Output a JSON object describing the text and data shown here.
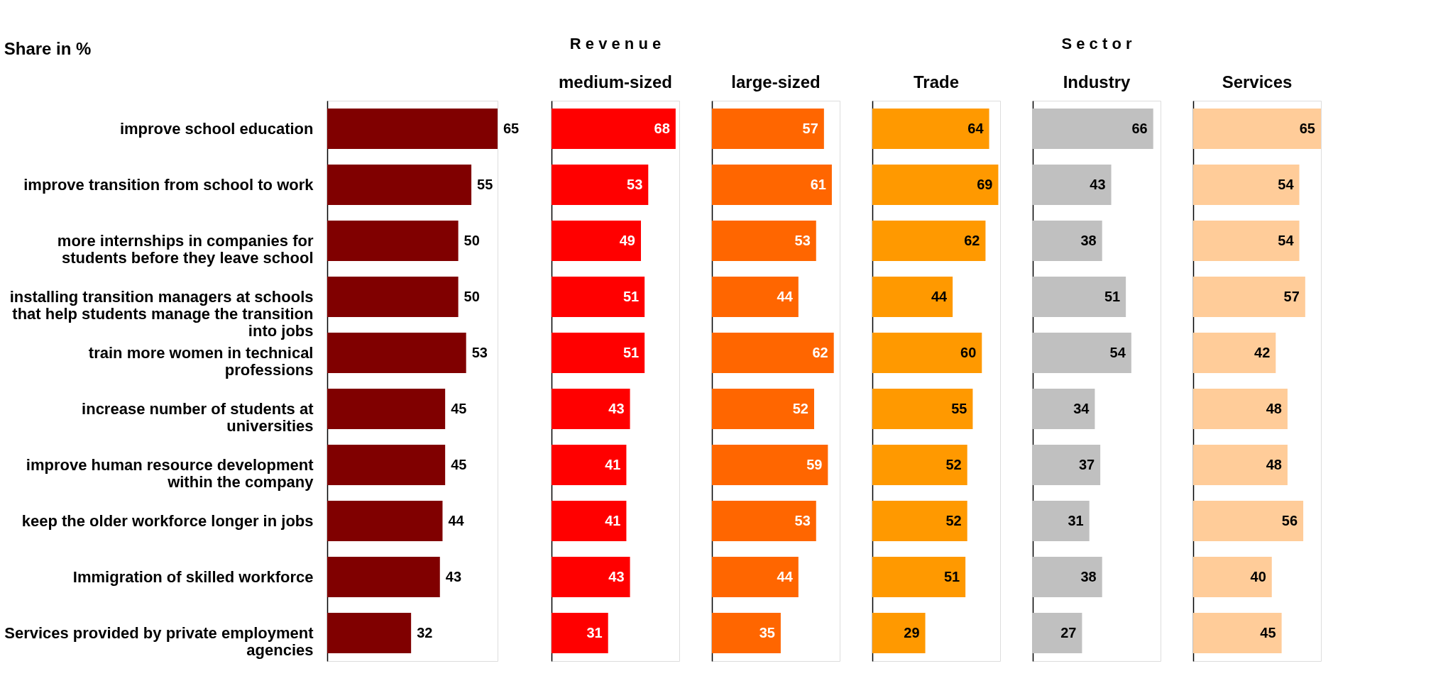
{
  "chart_data": [
    {
      "type": "bar",
      "orientation": "horizontal",
      "title": "Share in %",
      "tick_labels": "y",
      "data_labels": true,
      "color": "#800000",
      "categories": [
        "improve school education",
        "improve transition from school to work",
        "more internships in companies for\nstudents before they leave school",
        "installing transition managers at schools\nthat help students manage the transition\ninto jobs",
        "train more women in technical\nprofessions",
        "increase number of students at\nuniversities",
        "improve human resource development\nwithin the company",
        "keep the older workforce longer in jobs",
        "Immigration of skilled workforce",
        "Services provided by private employment\nagencies"
      ],
      "values": [
        65,
        55,
        50,
        50,
        53,
        45,
        45,
        44,
        43,
        32
      ]
    },
    {
      "type": "bar",
      "orientation": "horizontal",
      "title": "medium-sized",
      "annotations": [
        "R e v e n u e"
      ],
      "tick_labels": false,
      "data_labels": true,
      "color": "#ff0000",
      "values": [
        68,
        53,
        49,
        51,
        51,
        43,
        41,
        41,
        43,
        31
      ]
    },
    {
      "type": "bar",
      "orientation": "horizontal",
      "title": "large-sized",
      "tick_labels": false,
      "data_labels": true,
      "color": "#ff6600",
      "values": [
        57,
        61,
        53,
        44,
        62,
        52,
        59,
        53,
        44,
        35
      ]
    },
    {
      "type": "bar",
      "orientation": "horizontal",
      "title": "Trade",
      "tick_labels": false,
      "data_labels": true,
      "color": "#ff9900",
      "values": [
        64,
        69,
        62,
        44,
        60,
        55,
        52,
        52,
        51,
        29
      ]
    },
    {
      "type": "bar",
      "orientation": "horizontal",
      "title": "Industry",
      "annotations": [
        "S e c t o r"
      ],
      "tick_labels": false,
      "data_labels": true,
      "color": "#c0c0c0",
      "values": [
        66,
        43,
        38,
        51,
        54,
        34,
        37,
        31,
        38,
        27
      ]
    },
    {
      "type": "bar",
      "orientation": "horizontal",
      "title": "Services",
      "tick_labels": false,
      "data_labels": true,
      "color": "#ffcc99",
      "values": [
        65,
        54,
        54,
        57,
        42,
        48,
        48,
        56,
        40,
        45
      ]
    }
  ]
}
